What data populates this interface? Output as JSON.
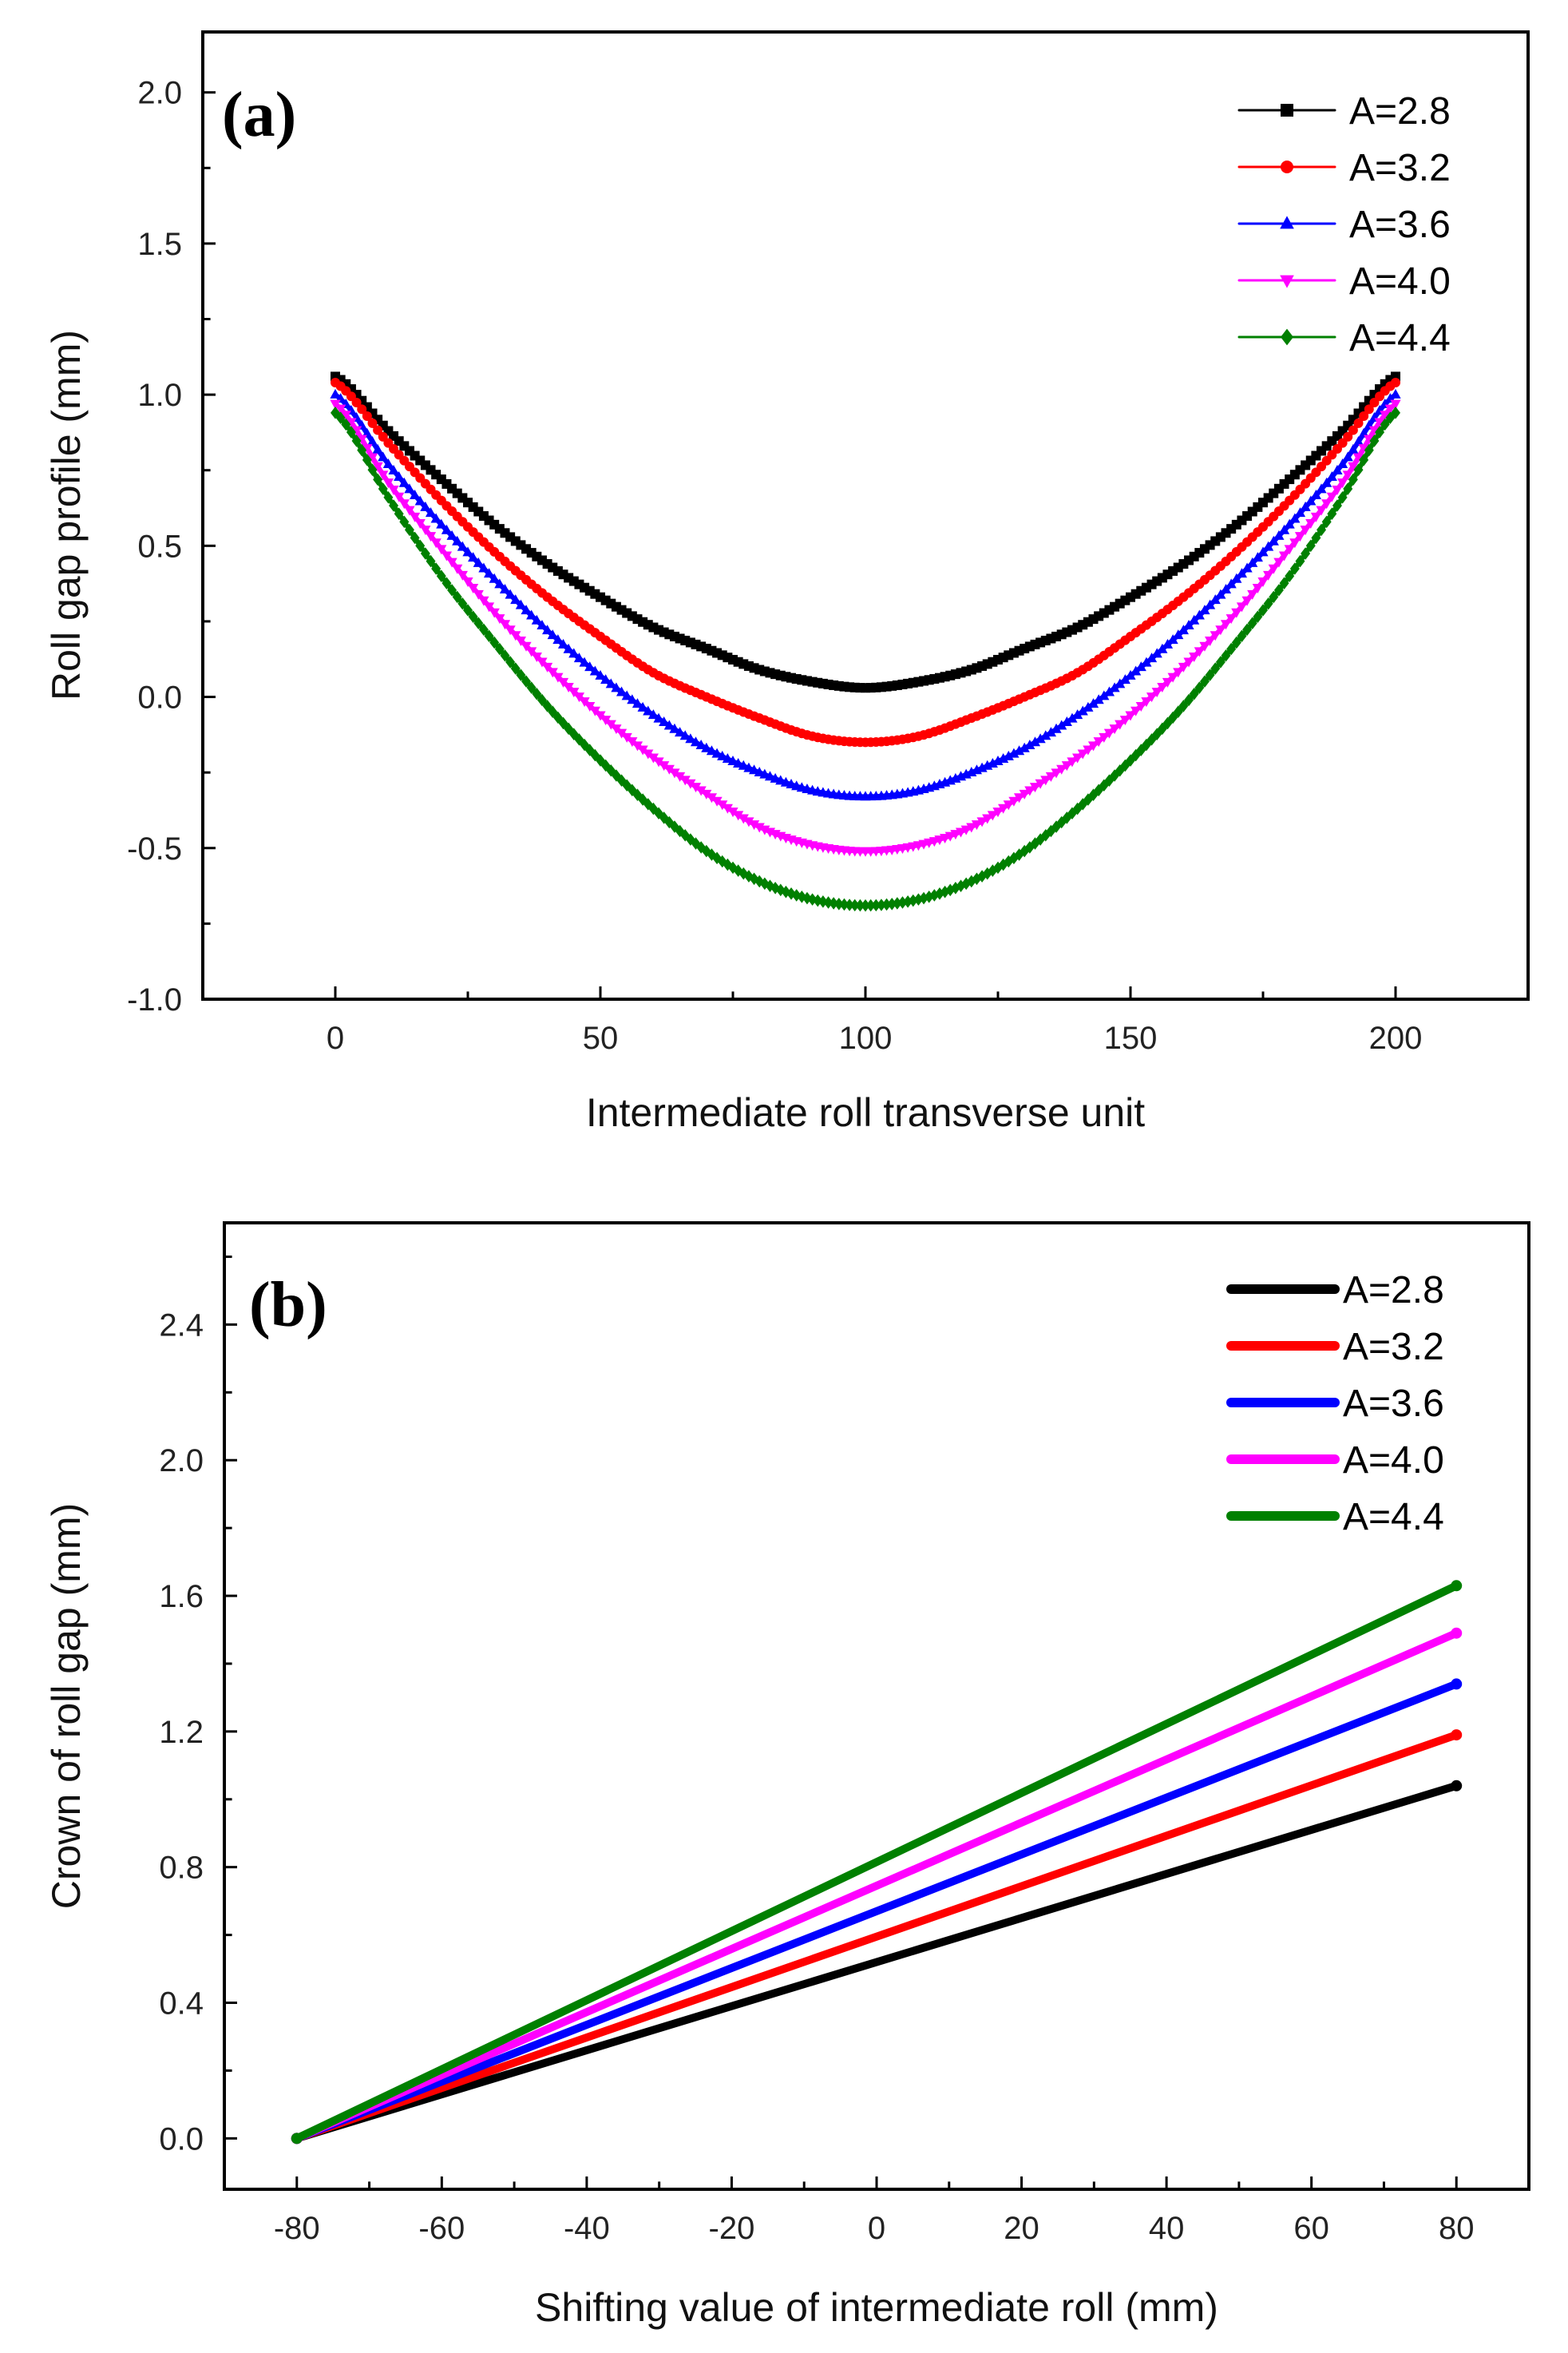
{
  "chart_data": [
    {
      "id": "a",
      "type": "line",
      "panel_label": "(a)",
      "xlabel": "Intermediate roll transverse unit",
      "ylabel": "Roll gap profile (mm)",
      "xlim": [
        -25,
        225
      ],
      "ylim": [
        -1.0,
        2.2
      ],
      "xticks": [
        0,
        50,
        100,
        150,
        200
      ],
      "xtick_labels": [
        "0",
        "50",
        "100",
        "150",
        "200"
      ],
      "yticks": [
        -1.0,
        -0.5,
        0.0,
        0.5,
        1.0,
        1.5,
        2.0
      ],
      "ytick_labels": [
        "-1.0",
        "-0.5",
        "0.0",
        "0.5",
        "1.0",
        "1.5",
        "2.0"
      ],
      "legend_position": "top-right",
      "x": [
        0,
        10,
        20,
        30,
        40,
        50,
        60,
        70,
        80,
        90,
        100,
        110,
        120,
        130,
        140,
        150,
        160,
        170,
        180,
        190,
        200
      ],
      "series": [
        {
          "name": "A=2.8",
          "color": "#000000",
          "marker": "square",
          "values": [
            1.06,
            0.88,
            0.72,
            0.57,
            0.44,
            0.33,
            0.23,
            0.16,
            0.09,
            0.05,
            0.03,
            0.05,
            0.09,
            0.16,
            0.23,
            0.33,
            0.44,
            0.57,
            0.72,
            0.88,
            1.06
          ]
        },
        {
          "name": "A=3.2",
          "color": "#ff0000",
          "marker": "circle",
          "values": [
            1.04,
            0.84,
            0.65,
            0.48,
            0.33,
            0.2,
            0.08,
            0.0,
            -0.07,
            -0.13,
            -0.15,
            -0.13,
            -0.07,
            0.0,
            0.08,
            0.2,
            0.33,
            0.48,
            0.65,
            0.84,
            1.04
          ]
        },
        {
          "name": "A=3.6",
          "color": "#0000ff",
          "marker": "triangle-up",
          "values": [
            1.0,
            0.77,
            0.57,
            0.39,
            0.22,
            0.07,
            -0.06,
            -0.17,
            -0.25,
            -0.31,
            -0.33,
            -0.31,
            -0.25,
            -0.17,
            -0.06,
            0.07,
            0.22,
            0.39,
            0.57,
            0.77,
            1.0
          ]
        },
        {
          "name": "A=4.0",
          "color": "#ff00ff",
          "marker": "triangle-down",
          "values": [
            0.97,
            0.71,
            0.49,
            0.28,
            0.1,
            -0.06,
            -0.2,
            -0.32,
            -0.43,
            -0.49,
            -0.51,
            -0.49,
            -0.43,
            -0.32,
            -0.2,
            -0.06,
            0.1,
            0.28,
            0.49,
            0.71,
            0.97
          ]
        },
        {
          "name": "A=4.4",
          "color": "#008000",
          "marker": "diamond",
          "values": [
            0.94,
            0.66,
            0.4,
            0.18,
            -0.03,
            -0.21,
            -0.37,
            -0.51,
            -0.61,
            -0.67,
            -0.69,
            -0.67,
            -0.61,
            -0.51,
            -0.37,
            -0.21,
            -0.03,
            0.18,
            0.4,
            0.66,
            0.94
          ]
        }
      ]
    },
    {
      "id": "b",
      "type": "line",
      "panel_label": "(b)",
      "xlabel": "Shifting value of intermediate roll (mm)",
      "ylabel": "Crown of roll gap (mm)",
      "xlim": [
        -90,
        90
      ],
      "ylim": [
        -0.15,
        2.7
      ],
      "xticks": [
        -80,
        -60,
        -40,
        -20,
        0,
        20,
        40,
        60,
        80
      ],
      "xtick_labels": [
        "-80",
        "-60",
        "-40",
        "-20",
        "0",
        "20",
        "40",
        "60",
        "80"
      ],
      "yticks": [
        0.0,
        0.4,
        0.8,
        1.2,
        1.6,
        2.0,
        2.4
      ],
      "ytick_labels": [
        "0.0",
        "0.4",
        "0.8",
        "1.2",
        "1.6",
        "2.0",
        "2.4"
      ],
      "legend_position": "top-right",
      "x": [
        -80,
        80
      ],
      "series": [
        {
          "name": "A=2.8",
          "color": "#000000",
          "values": [
            0.0,
            1.04
          ]
        },
        {
          "name": "A=3.2",
          "color": "#ff0000",
          "values": [
            0.0,
            1.19
          ]
        },
        {
          "name": "A=3.6",
          "color": "#0000ff",
          "values": [
            0.0,
            1.34
          ]
        },
        {
          "name": "A=4.0",
          "color": "#ff00ff",
          "values": [
            0.0,
            1.49
          ]
        },
        {
          "name": "A=4.4",
          "color": "#008000",
          "values": [
            0.0,
            1.63
          ]
        }
      ]
    }
  ]
}
